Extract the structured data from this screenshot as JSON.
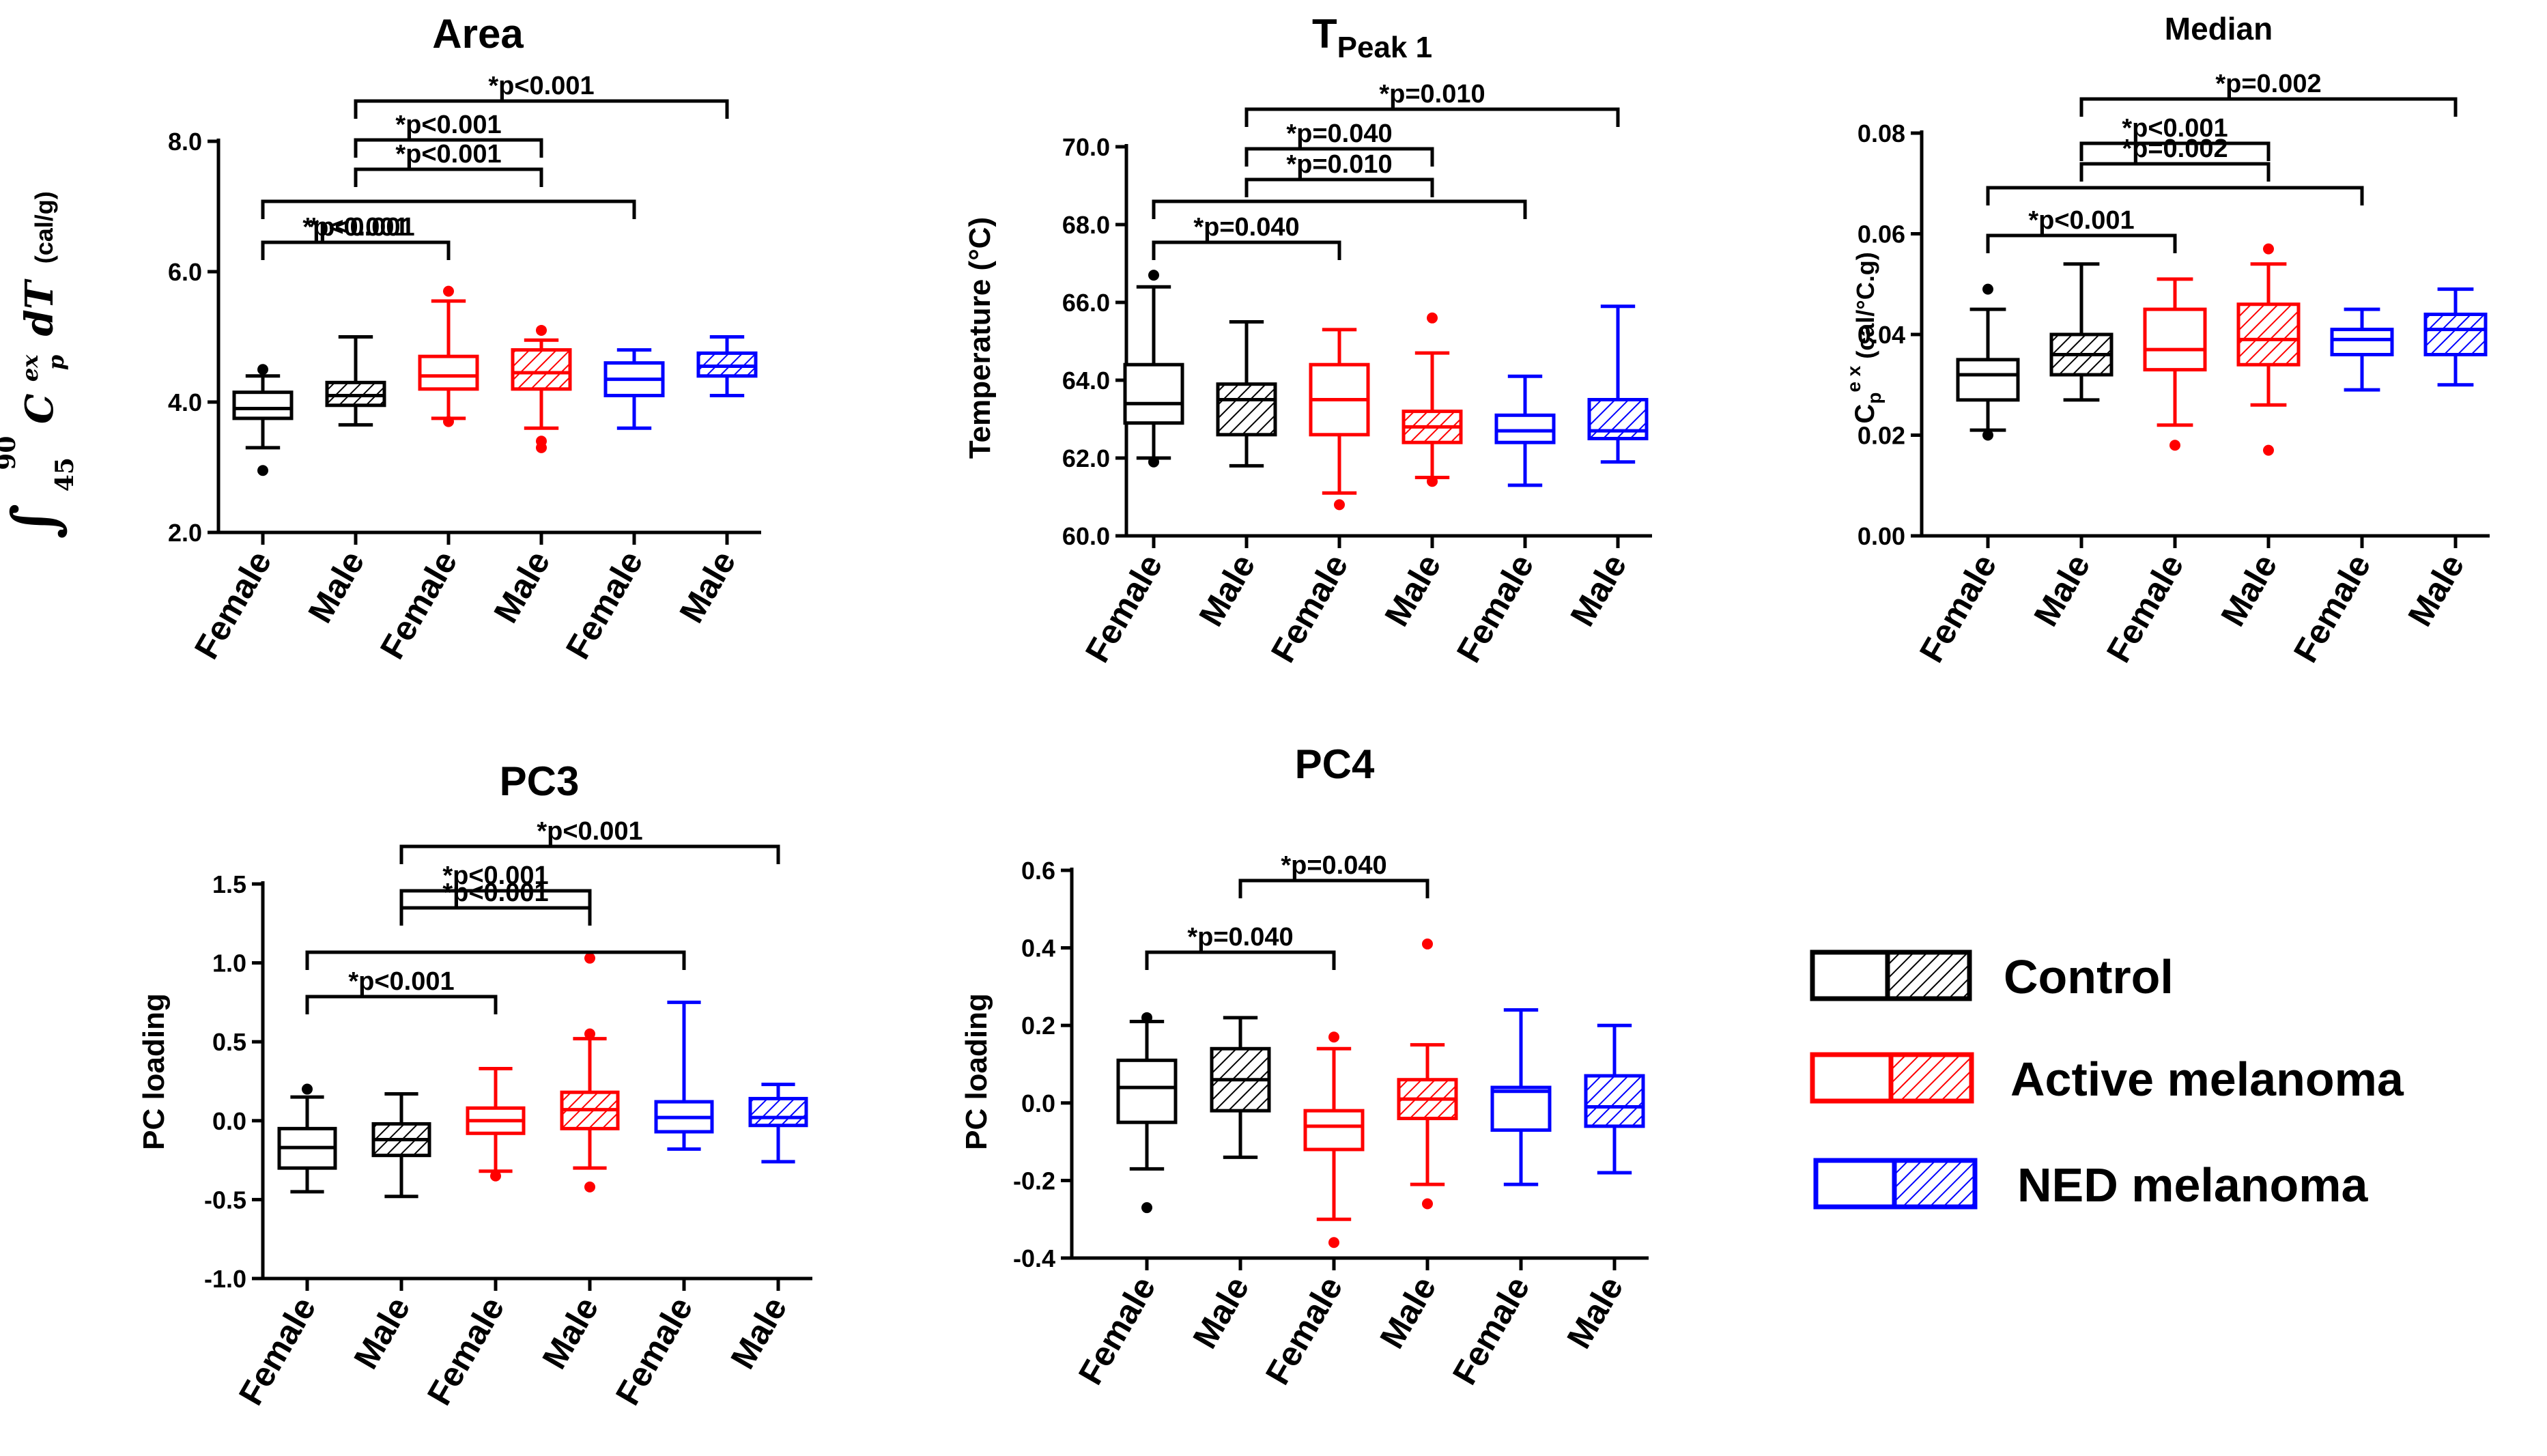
{
  "colors": {
    "control": "#000000",
    "active": "#ff0000",
    "ned": "#0000ff"
  },
  "categories": [
    "Female",
    "Male",
    "Female",
    "Male",
    "Female",
    "Male"
  ],
  "groups": [
    "control",
    "control",
    "active",
    "active",
    "ned",
    "ned"
  ],
  "hatched": [
    false,
    true,
    false,
    true,
    false,
    true
  ],
  "legend": [
    {
      "label": "Control",
      "color_key": "control"
    },
    {
      "label": "Active melanoma",
      "color_key": "active"
    },
    {
      "label": "NED melanoma",
      "color_key": "ned"
    }
  ],
  "chart_data": [
    {
      "id": "area",
      "type": "boxplot",
      "title": "Area",
      "title_sub": "",
      "ylabel": "∫45^90 Cp^ex dT (cal/g)",
      "ylabel_parts": {
        "integral": "∫",
        "upper": "90",
        "lower": "45",
        "var": "C",
        "sub": "p",
        "sup": "ex",
        "tail": "dT",
        "unit": "(cal/g)"
      },
      "ylim": [
        2.0,
        8.0
      ],
      "yticks": [
        2.0,
        4.0,
        6.0,
        8.0
      ],
      "decimals": 1,
      "boxes": [
        {
          "min": 3.3,
          "q1": 3.75,
          "median": 3.9,
          "q3": 4.15,
          "max": 4.4,
          "outliers": [
            2.95,
            4.5
          ]
        },
        {
          "min": 3.65,
          "q1": 3.95,
          "median": 4.1,
          "q3": 4.3,
          "max": 5.0,
          "outliers": []
        },
        {
          "min": 3.75,
          "q1": 4.2,
          "median": 4.4,
          "q3": 4.7,
          "max": 5.55,
          "outliers": [
            3.7,
            5.7
          ]
        },
        {
          "min": 3.6,
          "q1": 4.2,
          "median": 4.45,
          "q3": 4.8,
          "max": 4.95,
          "outliers": [
            3.3,
            3.4,
            5.1
          ]
        },
        {
          "min": 3.6,
          "q1": 4.1,
          "median": 4.35,
          "q3": 4.6,
          "max": 4.8,
          "outliers": []
        },
        {
          "min": 4.1,
          "q1": 4.4,
          "median": 4.55,
          "q3": 4.75,
          "max": 5.0,
          "outliers": []
        }
      ],
      "comparisons": [
        {
          "from": 1,
          "to": 5,
          "label": "*p<0.001"
        },
        {
          "from": 1,
          "to": 3,
          "label": "*p<0.001"
        },
        {
          "from": 1,
          "to": 3,
          "label": "*p<0.001"
        },
        {
          "from": 0,
          "to": 4,
          "label": ""
        },
        {
          "from": 0,
          "to": 2,
          "label": "*p<0.001"
        }
      ]
    },
    {
      "id": "tpeak1",
      "type": "boxplot",
      "title": "T",
      "title_sub": "Peak 1",
      "ylabel": "Temperature (°C)",
      "ylim": [
        60.0,
        70.0
      ],
      "yticks": [
        60.0,
        62.0,
        64.0,
        66.0,
        68.0,
        70.0
      ],
      "decimals": 1,
      "boxes": [
        {
          "min": 62.0,
          "q1": 62.9,
          "median": 63.4,
          "q3": 64.4,
          "max": 66.4,
          "outliers": [
            61.9,
            66.7
          ]
        },
        {
          "min": 61.8,
          "q1": 62.6,
          "median": 63.5,
          "q3": 63.9,
          "max": 65.5,
          "outliers": []
        },
        {
          "min": 61.1,
          "q1": 62.6,
          "median": 63.5,
          "q3": 64.4,
          "max": 65.3,
          "outliers": [
            60.8
          ]
        },
        {
          "min": 61.5,
          "q1": 62.4,
          "median": 62.8,
          "q3": 63.2,
          "max": 64.7,
          "outliers": [
            61.4,
            65.6
          ]
        },
        {
          "min": 61.3,
          "q1": 62.4,
          "median": 62.7,
          "q3": 63.1,
          "max": 64.1,
          "outliers": []
        },
        {
          "min": 61.9,
          "q1": 62.5,
          "median": 62.7,
          "q3": 63.5,
          "max": 65.9,
          "outliers": []
        }
      ],
      "comparisons": [
        {
          "from": 1,
          "to": 5,
          "label": "*p=0.010"
        },
        {
          "from": 1,
          "to": 3,
          "label": "*p=0.040"
        },
        {
          "from": 1,
          "to": 3,
          "label": "*p=0.010"
        },
        {
          "from": 0,
          "to": 4,
          "label": ""
        },
        {
          "from": 0,
          "to": 2,
          "label": "*p=0.040"
        }
      ]
    },
    {
      "id": "median",
      "type": "boxplot",
      "title": "Median",
      "title_sub": "",
      "ylabel": "Cp ex (cal/°C.g)",
      "ylabel_parts": {
        "var": "C",
        "sub": "p",
        "sup": "e x",
        "unit": " (cal/°C.g)"
      },
      "ylim": [
        0.0,
        0.08
      ],
      "yticks": [
        0.0,
        0.02,
        0.04,
        0.06,
        0.08
      ],
      "decimals": 2,
      "boxes": [
        {
          "min": 0.021,
          "q1": 0.027,
          "median": 0.032,
          "q3": 0.035,
          "max": 0.045,
          "outliers": [
            0.02,
            0.049
          ]
        },
        {
          "min": 0.027,
          "q1": 0.032,
          "median": 0.036,
          "q3": 0.04,
          "max": 0.054,
          "outliers": []
        },
        {
          "min": 0.022,
          "q1": 0.033,
          "median": 0.037,
          "q3": 0.045,
          "max": 0.051,
          "outliers": [
            0.018
          ]
        },
        {
          "min": 0.026,
          "q1": 0.034,
          "median": 0.039,
          "q3": 0.046,
          "max": 0.054,
          "outliers": [
            0.017,
            0.057
          ]
        },
        {
          "min": 0.029,
          "q1": 0.036,
          "median": 0.039,
          "q3": 0.041,
          "max": 0.045,
          "outliers": []
        },
        {
          "min": 0.03,
          "q1": 0.036,
          "median": 0.041,
          "q3": 0.044,
          "max": 0.049,
          "outliers": []
        }
      ],
      "comparisons": [
        {
          "from": 1,
          "to": 5,
          "label": "*p=0.002"
        },
        {
          "from": 1,
          "to": 3,
          "label": "*p<0.001"
        },
        {
          "from": 1,
          "to": 3,
          "label": "*p=0.002"
        },
        {
          "from": 0,
          "to": 4,
          "label": ""
        },
        {
          "from": 0,
          "to": 2,
          "label": "*p<0.001"
        }
      ]
    },
    {
      "id": "pc3",
      "type": "boxplot",
      "title": "PC3",
      "title_sub": "",
      "ylabel": "PC loading",
      "ylim": [
        -1.0,
        1.5
      ],
      "yticks": [
        -1.0,
        -0.5,
        0.0,
        0.5,
        1.0,
        1.5
      ],
      "decimals": 1,
      "boxes": [
        {
          "min": -0.45,
          "q1": -0.3,
          "median": -0.17,
          "q3": -0.05,
          "max": 0.15,
          "outliers": [
            0.2
          ]
        },
        {
          "min": -0.48,
          "q1": -0.22,
          "median": -0.12,
          "q3": -0.02,
          "max": 0.17,
          "outliers": []
        },
        {
          "min": -0.32,
          "q1": -0.08,
          "median": 0.0,
          "q3": 0.08,
          "max": 0.33,
          "outliers": [
            -0.35
          ]
        },
        {
          "min": -0.3,
          "q1": -0.05,
          "median": 0.07,
          "q3": 0.18,
          "max": 0.52,
          "outliers": [
            -0.42,
            1.03,
            0.55
          ]
        },
        {
          "min": -0.18,
          "q1": -0.07,
          "median": 0.02,
          "q3": 0.12,
          "max": 0.75,
          "outliers": []
        },
        {
          "min": -0.26,
          "q1": -0.03,
          "median": 0.02,
          "q3": 0.14,
          "max": 0.23,
          "outliers": []
        }
      ],
      "comparisons": [
        {
          "from": 1,
          "to": 5,
          "label": "*p<0.001"
        },
        {
          "from": 1,
          "to": 3,
          "label": "*p<0.001"
        },
        {
          "from": 1,
          "to": 3,
          "label": "*p<0.001"
        },
        {
          "from": 0,
          "to": 4,
          "label": ""
        },
        {
          "from": 0,
          "to": 2,
          "label": "*p<0.001"
        }
      ]
    },
    {
      "id": "pc4",
      "type": "boxplot",
      "title": "PC4",
      "title_sub": "",
      "ylabel": "PC loading",
      "ylim": [
        -0.4,
        0.6
      ],
      "yticks": [
        -0.4,
        -0.2,
        0.0,
        0.2,
        0.4,
        0.6
      ],
      "decimals": 1,
      "boxes": [
        {
          "min": -0.17,
          "q1": -0.05,
          "median": 0.04,
          "q3": 0.11,
          "max": 0.21,
          "outliers": [
            -0.27,
            0.22
          ]
        },
        {
          "min": -0.14,
          "q1": -0.02,
          "median": 0.06,
          "q3": 0.14,
          "max": 0.22,
          "outliers": []
        },
        {
          "min": -0.3,
          "q1": -0.12,
          "median": -0.06,
          "q3": -0.02,
          "max": 0.14,
          "outliers": [
            -0.36,
            0.17
          ]
        },
        {
          "min": -0.21,
          "q1": -0.04,
          "median": 0.01,
          "q3": 0.06,
          "max": 0.15,
          "outliers": [
            -0.26,
            0.41
          ]
        },
        {
          "min": -0.21,
          "q1": -0.07,
          "median": 0.03,
          "q3": 0.04,
          "max": 0.24,
          "outliers": []
        },
        {
          "min": -0.18,
          "q1": -0.06,
          "median": -0.01,
          "q3": 0.07,
          "max": 0.2,
          "outliers": []
        }
      ],
      "comparisons": [
        {
          "from": 1,
          "to": 3,
          "label": "*p=0.040"
        },
        {
          "from": 0,
          "to": 2,
          "label": "*p=0.040"
        }
      ]
    }
  ]
}
